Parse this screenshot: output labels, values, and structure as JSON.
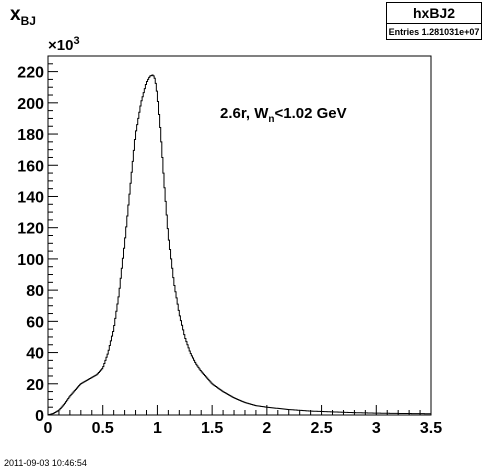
{
  "title": {
    "main": "x",
    "sub": "BJ"
  },
  "statbox": {
    "name": "hxBJ2",
    "entries_label": "Entries",
    "entries_value": "1.281031e+07"
  },
  "annotation": {
    "prefix": "2.6r, W",
    "sub": "n",
    "suffix": "<1.02 GeV"
  },
  "footer": "2011-09-03 10:46:54",
  "chart_data": {
    "type": "line",
    "title": "x_BJ",
    "xlabel": "",
    "ylabel": "",
    "y_multiplier_label": "×10",
    "y_multiplier_exp": "3",
    "xlim": [
      0,
      3.5
    ],
    "ylim": [
      0,
      230
    ],
    "xticks": [
      0,
      0.5,
      1,
      1.5,
      2,
      2.5,
      3,
      3.5
    ],
    "xtick_labels": [
      "0",
      "0.5",
      "1",
      "1.5",
      "2",
      "2.5",
      "3",
      "3.5"
    ],
    "yticks": [
      0,
      20,
      40,
      60,
      80,
      100,
      120,
      140,
      160,
      180,
      200,
      220
    ],
    "ytick_labels": [
      "0",
      "20",
      "40",
      "60",
      "80",
      "100",
      "120",
      "140",
      "160",
      "180",
      "200",
      "220"
    ],
    "grid": false,
    "x": [
      0,
      0.05,
      0.1,
      0.15,
      0.2,
      0.25,
      0.3,
      0.35,
      0.4,
      0.45,
      0.5,
      0.55,
      0.6,
      0.65,
      0.7,
      0.75,
      0.8,
      0.85,
      0.9,
      0.93,
      0.96,
      0.98,
      1.0,
      1.03,
      1.06,
      1.1,
      1.15,
      1.2,
      1.25,
      1.3,
      1.35,
      1.4,
      1.5,
      1.6,
      1.7,
      1.8,
      1.9,
      2.0,
      2.2,
      2.4,
      2.6,
      2.8,
      3.0,
      3.2,
      3.5
    ],
    "series": [
      {
        "name": "",
        "values": [
          0,
          1,
          3,
          7,
          12,
          16,
          20,
          22,
          24,
          26,
          30,
          40,
          55,
          78,
          110,
          145,
          180,
          200,
          213,
          217,
          218,
          215,
          205,
          180,
          150,
          115,
          85,
          65,
          50,
          40,
          33,
          28,
          20,
          15,
          11,
          8,
          6,
          5,
          3.5,
          2.5,
          2,
          1.5,
          1.2,
          1,
          0.8
        ]
      }
    ]
  }
}
